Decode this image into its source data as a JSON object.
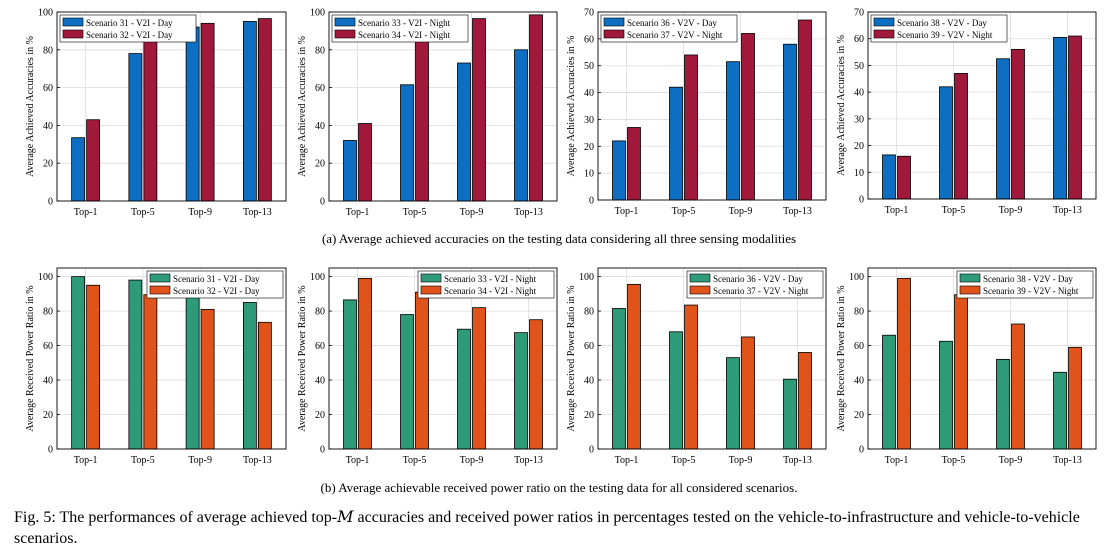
{
  "chart_data": [
    {
      "type": "bar",
      "categories": [
        "Top-1",
        "Top-5",
        "Top-9",
        "Top-13"
      ],
      "ylabel": "Average Achieved Accuracies in %",
      "ylim": [
        0,
        100
      ],
      "yticks": [
        0,
        20,
        40,
        60,
        80,
        100
      ],
      "grid": true,
      "legend": "top-left",
      "series": [
        {
          "name": "Scenario 31 - V2I - Day",
          "color": "#0e6fc2",
          "values": [
            33.5,
            78,
            92,
            95
          ]
        },
        {
          "name": "Scenario 32 - V2I - Day",
          "color": "#a0183a",
          "values": [
            43,
            90.5,
            94,
            96.5
          ]
        }
      ]
    },
    {
      "type": "bar",
      "categories": [
        "Top-1",
        "Top-5",
        "Top-9",
        "Top-13"
      ],
      "ylabel": "Average Achieved Accuracies in %",
      "ylim": [
        0,
        100
      ],
      "yticks": [
        0,
        20,
        40,
        60,
        80,
        100
      ],
      "grid": true,
      "legend": "top-left",
      "series": [
        {
          "name": "Scenario 33 - V2I - Night",
          "color": "#0e6fc2",
          "values": [
            32,
            61.5,
            73,
            80
          ]
        },
        {
          "name": "Scenario 34 - V2I - Night",
          "color": "#a0183a",
          "values": [
            41,
            90,
            96.5,
            98.5
          ]
        }
      ]
    },
    {
      "type": "bar",
      "categories": [
        "Top-1",
        "Top-5",
        "Top-9",
        "Top-13"
      ],
      "ylabel": "Average Achieved Accuracies in %",
      "ylim": [
        0,
        70
      ],
      "yticks": [
        0,
        10,
        20,
        30,
        40,
        50,
        60,
        70
      ],
      "grid": true,
      "legend": "top-left",
      "series": [
        {
          "name": "Scenario 36 - V2V - Day",
          "color": "#0e6fc2",
          "values": [
            22,
            42,
            51.5,
            58
          ]
        },
        {
          "name": "Scenario 37 - V2V - Night",
          "color": "#a0183a",
          "values": [
            27,
            54,
            62,
            67
          ]
        }
      ]
    },
    {
      "type": "bar",
      "categories": [
        "Top-1",
        "Top-5",
        "Top-9",
        "Top-13"
      ],
      "ylabel": "Average Achieved Accuracies in %",
      "ylim": [
        0,
        70
      ],
      "yticks": [
        0,
        10,
        20,
        30,
        40,
        50,
        60,
        70
      ],
      "grid": true,
      "legend": "top-left",
      "series": [
        {
          "name": "Scenario 38 - V2V - Day",
          "color": "#0e6fc2",
          "values": [
            16.5,
            42,
            52.5,
            60.5
          ]
        },
        {
          "name": "Scenario 39 - V2V - Night",
          "color": "#a0183a",
          "values": [
            16,
            47,
            56,
            61
          ]
        }
      ]
    },
    {
      "type": "bar",
      "categories": [
        "Top-1",
        "Top-5",
        "Top-9",
        "Top-13"
      ],
      "ylabel": "Average Received Power Ratio in %",
      "ylim": [
        0,
        105
      ],
      "yticks": [
        0,
        20,
        40,
        60,
        80,
        100
      ],
      "grid": true,
      "legend": "top-right",
      "series": [
        {
          "name": "Scenario 31 - V2I - Day",
          "color": "#2e9a78",
          "values": [
            100,
            98,
            90,
            85
          ]
        },
        {
          "name": "Scenario 32 - V2I - Day",
          "color": "#e0541c",
          "values": [
            95,
            89.5,
            81,
            73.5
          ]
        }
      ]
    },
    {
      "type": "bar",
      "categories": [
        "Top-1",
        "Top-5",
        "Top-9",
        "Top-13"
      ],
      "ylabel": "Average Received Power Ratio in %",
      "ylim": [
        0,
        105
      ],
      "yticks": [
        0,
        20,
        40,
        60,
        80,
        100
      ],
      "grid": true,
      "legend": "top-right",
      "series": [
        {
          "name": "Scenario 33 - V2I - Night",
          "color": "#2e9a78",
          "values": [
            86.5,
            78,
            69.5,
            67.5
          ]
        },
        {
          "name": "Scenario 34 - V2I - Night",
          "color": "#e0541c",
          "values": [
            99,
            91,
            82,
            75
          ]
        }
      ]
    },
    {
      "type": "bar",
      "categories": [
        "Top-1",
        "Top-5",
        "Top-9",
        "Top-13"
      ],
      "ylabel": "Average Received Power Ratio in %",
      "ylim": [
        0,
        105
      ],
      "yticks": [
        0,
        20,
        40,
        60,
        80,
        100
      ],
      "grid": true,
      "legend": "top-right",
      "series": [
        {
          "name": "Scenario 36 - V2V - Day",
          "color": "#2e9a78",
          "values": [
            81.5,
            68,
            53,
            40.5
          ]
        },
        {
          "name": "Scenario 37 - V2V - Night",
          "color": "#e0541c",
          "values": [
            95.5,
            83.5,
            65,
            56
          ]
        }
      ]
    },
    {
      "type": "bar",
      "categories": [
        "Top-1",
        "Top-5",
        "Top-9",
        "Top-13"
      ],
      "ylabel": "Average Received Power Ratio in %",
      "ylim": [
        0,
        105
      ],
      "yticks": [
        0,
        20,
        40,
        60,
        80,
        100
      ],
      "grid": true,
      "legend": "top-right",
      "series": [
        {
          "name": "Scenario 38 - V2V - Day",
          "color": "#2e9a78",
          "values": [
            66,
            62.5,
            52,
            44.5
          ]
        },
        {
          "name": "Scenario 39 - V2V - Night",
          "color": "#e0541c",
          "values": [
            99,
            89.5,
            72.5,
            59
          ]
        }
      ]
    }
  ],
  "captions": {
    "a": "(a) Average achieved accuracies on the testing data considering all three sensing modalities",
    "b": "(b) Average achievable received power ratio on the testing data for all considered scenarios.",
    "main_prefix": "Fig. 5: The performances of average achieved top-",
    "main_var": "M",
    "main_suffix": " accuracies and received power ratios in percentages tested on the vehicle-to-infrastructure and vehicle-to-vehicle scenarios."
  }
}
